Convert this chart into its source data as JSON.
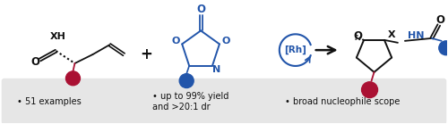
{
  "fig_bg": "#ffffff",
  "panel_color": "#e6e6e6",
  "blue": "#2255aa",
  "red": "#aa1133",
  "black": "#111111",
  "bullet1": "51 examples",
  "bullet2_line1": "up to 99% yield",
  "bullet2_line2": "and >20:1 dr",
  "bullet3": "broad nucleophile scope",
  "rh_label": "[Rh]"
}
